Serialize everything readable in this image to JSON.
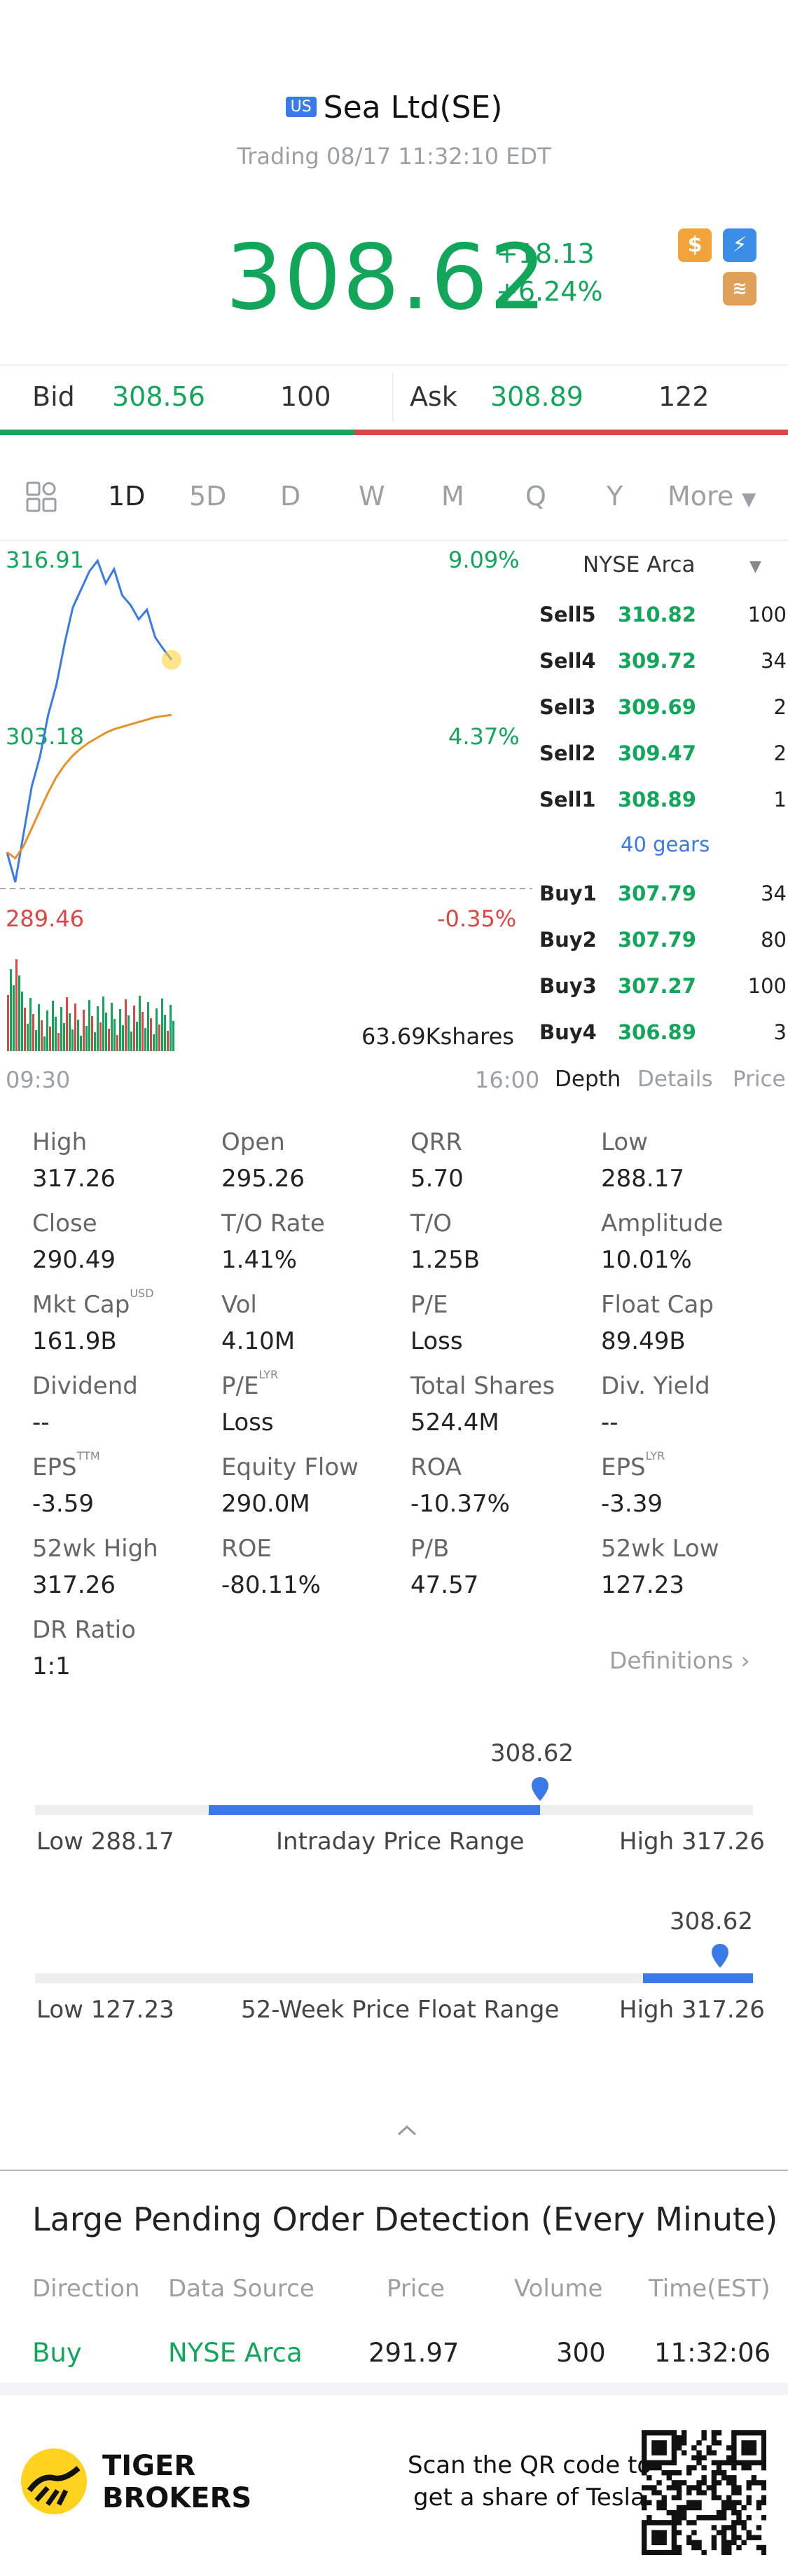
{
  "header": {
    "market_badge": "US",
    "title": "Sea Ltd(SE)",
    "trading_status": "Trading 08/17 11:32:10 EDT",
    "price": "308.62",
    "change": "+18.13",
    "change_pct": "+6.24%",
    "icons": [
      "dollar-icon",
      "lightning-icon",
      "layers-icon"
    ]
  },
  "bidask": {
    "bid_label": "Bid",
    "bid_price": "308.56",
    "bid_qty": "100",
    "ask_label": "Ask",
    "ask_price": "308.89",
    "ask_qty": "122",
    "bid_share": 0.45
  },
  "tabs": [
    "1D",
    "5D",
    "D",
    "W",
    "M",
    "Q",
    "Y",
    "More"
  ],
  "active_tab": "1D",
  "chart": {
    "high_price": "316.91",
    "high_pct": "9.09%",
    "mid_price": "303.18",
    "mid_pct": "4.37%",
    "low_price": "289.46",
    "low_pct": "-0.35%",
    "volume_label": "63.69Kshares",
    "time_start": "09:30",
    "time_end": "16:00"
  },
  "chart_data": {
    "type": "line",
    "series": [
      {
        "values": [
          292.5,
          290.0,
          294.0,
          298.0,
          300.5,
          304.0,
          306.5,
          310.0,
          313.0,
          314.5,
          316.0,
          316.9,
          315.0,
          316.2,
          314.0,
          313.2,
          312.0,
          312.8,
          310.5,
          309.5,
          308.6
        ]
      },
      {
        "values": [
          292.5,
          292.0,
          293.0,
          294.5,
          296.0,
          297.5,
          298.8,
          299.8,
          300.6,
          301.2,
          301.7,
          302.1,
          302.5,
          302.8,
          303.0,
          303.2,
          303.4,
          303.6,
          303.8,
          303.9,
          304.0
        ]
      }
    ],
    "ylim": [
      289.46,
      316.91
    ],
    "colors": {
      "price": "#3a79e8",
      "avg": "#e8902a"
    }
  },
  "orderbook": {
    "exchange": "NYSE Arca",
    "sells": [
      {
        "label": "Sell5",
        "price": "310.82",
        "qty": "100"
      },
      {
        "label": "Sell4",
        "price": "309.72",
        "qty": "34"
      },
      {
        "label": "Sell3",
        "price": "309.69",
        "qty": "2"
      },
      {
        "label": "Sell2",
        "price": "309.47",
        "qty": "2"
      },
      {
        "label": "Sell1",
        "price": "308.89",
        "qty": "1"
      }
    ],
    "gears": "40 gears",
    "buys": [
      {
        "label": "Buy1",
        "price": "307.79",
        "qty": "34"
      },
      {
        "label": "Buy2",
        "price": "307.79",
        "qty": "80"
      },
      {
        "label": "Buy3",
        "price": "307.27",
        "qty": "100"
      },
      {
        "label": "Buy4",
        "price": "306.89",
        "qty": "3"
      }
    ],
    "tabs": [
      "Depth",
      "Details",
      "Price"
    ]
  },
  "stats": [
    [
      {
        "k": "High",
        "v": "317.26"
      },
      {
        "k": "Open",
        "v": "295.26"
      },
      {
        "k": "QRR",
        "v": "5.70"
      },
      {
        "k": "Low",
        "v": "288.17"
      }
    ],
    [
      {
        "k": "Close",
        "v": "290.49"
      },
      {
        "k": "T/O Rate",
        "v": "1.41%"
      },
      {
        "k": "T/O",
        "v": "1.25B"
      },
      {
        "k": "Amplitude",
        "v": "10.01%"
      }
    ],
    [
      {
        "k": "Mkt Cap",
        "v": "161.9B",
        "sup": "USD"
      },
      {
        "k": "Vol",
        "v": "4.10M"
      },
      {
        "k": "P/E",
        "v": "Loss"
      },
      {
        "k": "Float Cap",
        "v": "89.49B"
      }
    ],
    [
      {
        "k": "Dividend",
        "v": "--"
      },
      {
        "k": "P/E",
        "v": "Loss",
        "sup": "LYR"
      },
      {
        "k": "Total Shares",
        "v": "524.4M"
      },
      {
        "k": "Div. Yield",
        "v": "--"
      }
    ],
    [
      {
        "k": "EPS",
        "v": "-3.59",
        "sup": "TTM"
      },
      {
        "k": "Equity Flow",
        "v": "290.0M"
      },
      {
        "k": "ROA",
        "v": "-10.37%"
      },
      {
        "k": "EPS",
        "v": "-3.39",
        "sup": "LYR"
      }
    ],
    [
      {
        "k": "52wk High",
        "v": "317.26"
      },
      {
        "k": "ROE",
        "v": "-80.11%"
      },
      {
        "k": "P/B",
        "v": "47.57"
      },
      {
        "k": "52wk Low",
        "v": "127.23"
      }
    ],
    [
      {
        "k": "DR Ratio",
        "v": "1:1"
      }
    ]
  ],
  "definitions_link": "Definitions",
  "intraday_range": {
    "current": "308.62",
    "low_label": "Low 288.17",
    "title": "Intraday Price Range",
    "high_label": "High 317.26",
    "low": 288.17,
    "high": 317.26,
    "value": 308.62
  },
  "week52_range": {
    "current": "308.62",
    "low_label": "Low 127.23",
    "title": "52-Week Price Float Range",
    "high_label": "High 317.26",
    "low": 127.23,
    "high": 317.26,
    "value": 308.62
  },
  "pending": {
    "title": "Large Pending Order Detection (Every Minute)",
    "headers": [
      "Direction",
      "Data Source",
      "Price",
      "Volume",
      "Time(EST)"
    ],
    "row": [
      "Buy",
      "NYSE Arca",
      "291.97",
      "300",
      "11:32:06"
    ]
  },
  "footer": {
    "brand_line1": "TIGER",
    "brand_line2": "BROKERS",
    "promo_line1": "Scan the QR code to",
    "promo_line2": "get a share of Tesla"
  }
}
